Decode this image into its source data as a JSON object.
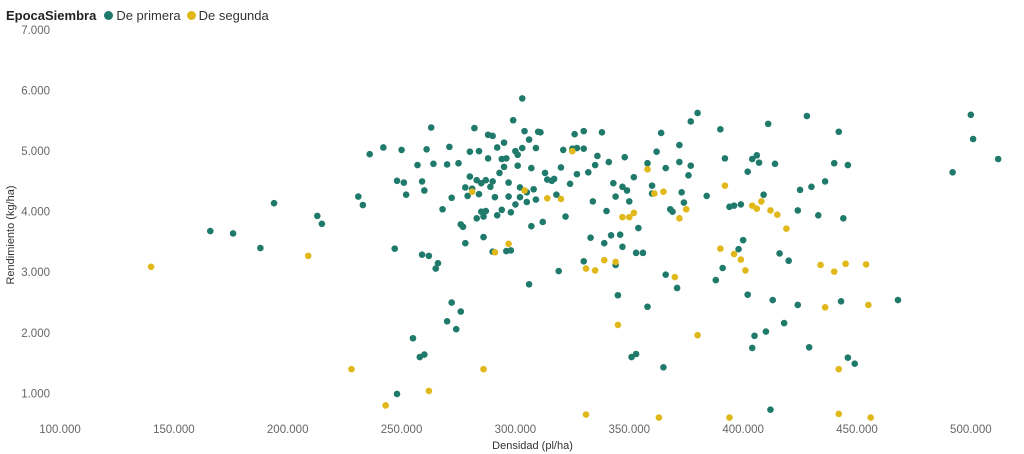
{
  "legend": {
    "title": "EpocaSiembra",
    "series_labels": [
      "De primera",
      "De segunda"
    ]
  },
  "colors": {
    "primera": "#1f7a6b",
    "segunda": "#e0b81a"
  },
  "chart_data": {
    "type": "scatter",
    "xlabel": "Densidad (pl/ha)",
    "ylabel": "Rendimiento (kg/ha)",
    "xlim": [
      100000,
      515000
    ],
    "ylim": [
      560,
      7000
    ],
    "x_ticks": [
      100000,
      150000,
      200000,
      250000,
      300000,
      350000,
      400000,
      450000,
      500000
    ],
    "x_tick_labels": [
      "100.000",
      "150.000",
      "200.000",
      "250.000",
      "300.000",
      "350.000",
      "400.000",
      "450.000",
      "500.000"
    ],
    "y_ticks": [
      1000,
      2000,
      3000,
      4000,
      5000,
      6000,
      7000
    ],
    "y_tick_labels": [
      "1.000",
      "2.000",
      "3.000",
      "4.000",
      "5.000",
      "6.000",
      "7.000"
    ],
    "grid": false,
    "legend_position": "top-left",
    "series": [
      {
        "name": "De primera",
        "color": "#1f7a6b",
        "points": [
          [
            166000,
            3680
          ],
          [
            176000,
            3640
          ],
          [
            188000,
            3400
          ],
          [
            194000,
            4140
          ],
          [
            213000,
            3930
          ],
          [
            215000,
            3800
          ],
          [
            231000,
            4250
          ],
          [
            233000,
            4110
          ],
          [
            236000,
            4950
          ],
          [
            242000,
            5060
          ],
          [
            247000,
            3390
          ],
          [
            250000,
            5020
          ],
          [
            248000,
            4510
          ],
          [
            251000,
            4480
          ],
          [
            252000,
            4280
          ],
          [
            257000,
            4770
          ],
          [
            259000,
            4500
          ],
          [
            261000,
            5030
          ],
          [
            263000,
            5390
          ],
          [
            260000,
            4350
          ],
          [
            264000,
            4790
          ],
          [
            268000,
            4040
          ],
          [
            270000,
            4780
          ],
          [
            271000,
            5070
          ],
          [
            272000,
            4230
          ],
          [
            275000,
            4800
          ],
          [
            276000,
            3790
          ],
          [
            277000,
            3750
          ],
          [
            278000,
            4400
          ],
          [
            280000,
            4580
          ],
          [
            282000,
            5380
          ],
          [
            283000,
            4520
          ],
          [
            284000,
            4290
          ],
          [
            285000,
            4000
          ],
          [
            286000,
            3920
          ],
          [
            287000,
            4520
          ],
          [
            288000,
            4880
          ],
          [
            289000,
            4410
          ],
          [
            290000,
            5250
          ],
          [
            291000,
            4240
          ],
          [
            292000,
            3940
          ],
          [
            293000,
            4640
          ],
          [
            294000,
            4870
          ],
          [
            295000,
            5140
          ],
          [
            296000,
            4880
          ],
          [
            297000,
            4250
          ],
          [
            298000,
            3990
          ],
          [
            299000,
            5510
          ],
          [
            300000,
            5000
          ],
          [
            301000,
            4760
          ],
          [
            302000,
            4400
          ],
          [
            303000,
            5050
          ],
          [
            304000,
            5330
          ],
          [
            305000,
            4160
          ],
          [
            306000,
            5190
          ],
          [
            307000,
            3760
          ],
          [
            308000,
            4370
          ],
          [
            309000,
            5050
          ],
          [
            310000,
            5320
          ],
          [
            312000,
            3830
          ],
          [
            314000,
            4530
          ],
          [
            316000,
            4510
          ],
          [
            318000,
            4280
          ],
          [
            320000,
            4730
          ],
          [
            322000,
            3920
          ],
          [
            324000,
            4460
          ],
          [
            325000,
            5040
          ],
          [
            327000,
            5050
          ],
          [
            330000,
            5330
          ],
          [
            332000,
            4650
          ],
          [
            334000,
            4170
          ],
          [
            336000,
            4920
          ],
          [
            338000,
            5310
          ],
          [
            340000,
            4010
          ],
          [
            342000,
            3610
          ],
          [
            344000,
            4250
          ],
          [
            346000,
            3620
          ],
          [
            348000,
            4900
          ],
          [
            350000,
            4170
          ],
          [
            352000,
            4570
          ],
          [
            354000,
            3730
          ],
          [
            356000,
            3320
          ],
          [
            358000,
            4800
          ],
          [
            360000,
            4300
          ],
          [
            362000,
            4990
          ],
          [
            364000,
            5300
          ],
          [
            366000,
            4720
          ],
          [
            368000,
            4040
          ],
          [
            369000,
            4000
          ],
          [
            372000,
            4820
          ],
          [
            373000,
            4320
          ],
          [
            374000,
            4150
          ],
          [
            376000,
            4600
          ],
          [
            377000,
            4760
          ],
          [
            380000,
            5630
          ],
          [
            384000,
            4260
          ],
          [
            390000,
            5360
          ],
          [
            392000,
            4880
          ],
          [
            394000,
            4080
          ],
          [
            396000,
            4100
          ],
          [
            398000,
            3380
          ],
          [
            400000,
            3530
          ],
          [
            402000,
            4660
          ],
          [
            404000,
            4870
          ],
          [
            406000,
            4930
          ],
          [
            409000,
            4280
          ],
          [
            411000,
            5450
          ],
          [
            414000,
            4790
          ],
          [
            416000,
            3310
          ],
          [
            420000,
            3190
          ],
          [
            424000,
            4020
          ],
          [
            428000,
            5580
          ],
          [
            430000,
            4410
          ],
          [
            433000,
            3940
          ],
          [
            436000,
            4500
          ],
          [
            440000,
            4800
          ],
          [
            442000,
            5320
          ],
          [
            444000,
            3890
          ],
          [
            446000,
            4770
          ],
          [
            280000,
            4990
          ],
          [
            290000,
            4500
          ],
          [
            305000,
            4320
          ],
          [
            283000,
            3890
          ],
          [
            296000,
            3350
          ],
          [
            330000,
            5040
          ],
          [
            297000,
            4480
          ],
          [
            287000,
            4010
          ],
          [
            301000,
            4940
          ],
          [
            285000,
            4470
          ],
          [
            292000,
            5060
          ],
          [
            317000,
            4540
          ],
          [
            319000,
            3020
          ],
          [
            326000,
            5280
          ],
          [
            333000,
            3570
          ],
          [
            343000,
            4470
          ],
          [
            347000,
            3420
          ],
          [
            353000,
            3320
          ],
          [
            366000,
            2960
          ],
          [
            358000,
            2430
          ],
          [
            345000,
            2620
          ],
          [
            351000,
            1600
          ],
          [
            353000,
            1650
          ],
          [
            365000,
            1430
          ],
          [
            371000,
            2740
          ],
          [
            388000,
            2870
          ],
          [
            391000,
            3070
          ],
          [
            402000,
            2630
          ],
          [
            404000,
            1750
          ],
          [
            405000,
            1950
          ],
          [
            410000,
            2020
          ],
          [
            413000,
            2540
          ],
          [
            418000,
            2160
          ],
          [
            424000,
            2460
          ],
          [
            429000,
            1760
          ],
          [
            443000,
            2520
          ],
          [
            446000,
            1590
          ],
          [
            449000,
            1490
          ],
          [
            468000,
            2540
          ],
          [
            492000,
            4650
          ],
          [
            500000,
            5600
          ],
          [
            501000,
            5200
          ],
          [
            512000,
            4870
          ],
          [
            265000,
            3060
          ],
          [
            266000,
            3150
          ],
          [
            260000,
            1640
          ],
          [
            262000,
            3270
          ],
          [
            259000,
            3290
          ],
          [
            255000,
            1910
          ],
          [
            258000,
            1600
          ],
          [
            270000,
            2190
          ],
          [
            272000,
            2500
          ],
          [
            274000,
            2060
          ],
          [
            276000,
            2350
          ],
          [
            278000,
            3480
          ],
          [
            286000,
            3580
          ],
          [
            290000,
            3340
          ],
          [
            298000,
            3360
          ],
          [
            306000,
            2800
          ],
          [
            313000,
            4640
          ],
          [
            341000,
            4820
          ],
          [
            347000,
            4410
          ],
          [
            330000,
            3180
          ],
          [
            339000,
            3480
          ],
          [
            344000,
            3120
          ],
          [
            349000,
            4350
          ],
          [
            311000,
            5310
          ],
          [
            300000,
            4120
          ],
          [
            302000,
            4240
          ],
          [
            307000,
            4720
          ],
          [
            295000,
            4740
          ],
          [
            281000,
            4380
          ],
          [
            279000,
            4260
          ],
          [
            284000,
            5000
          ],
          [
            288000,
            5270
          ],
          [
            294000,
            4030
          ],
          [
            303000,
            5870
          ],
          [
            309000,
            4200
          ],
          [
            248000,
            990
          ],
          [
            412000,
            730
          ],
          [
            321000,
            5020
          ],
          [
            327000,
            4620
          ],
          [
            335000,
            4770
          ],
          [
            360000,
            4430
          ],
          [
            372000,
            5100
          ],
          [
            377000,
            5490
          ],
          [
            399000,
            4120
          ],
          [
            407000,
            4810
          ],
          [
            425000,
            4360
          ]
        ]
      },
      {
        "name": "De segunda",
        "color": "#e0b81a",
        "points": [
          [
            140000,
            3090
          ],
          [
            209000,
            3270
          ],
          [
            228000,
            1400
          ],
          [
            243000,
            800
          ],
          [
            262000,
            1040
          ],
          [
            281000,
            4330
          ],
          [
            286000,
            1400
          ],
          [
            291000,
            3330
          ],
          [
            304000,
            4350
          ],
          [
            314000,
            4220
          ],
          [
            320000,
            4210
          ],
          [
            325000,
            5000
          ],
          [
            331000,
            3060
          ],
          [
            335000,
            3030
          ],
          [
            339000,
            3200
          ],
          [
            344000,
            3170
          ],
          [
            345000,
            2130
          ],
          [
            347000,
            3910
          ],
          [
            350000,
            3910
          ],
          [
            352000,
            3980
          ],
          [
            358000,
            4700
          ],
          [
            361000,
            4300
          ],
          [
            365000,
            4330
          ],
          [
            370000,
            2920
          ],
          [
            372000,
            3890
          ],
          [
            375000,
            4040
          ],
          [
            380000,
            1960
          ],
          [
            390000,
            3390
          ],
          [
            392000,
            4430
          ],
          [
            396000,
            3300
          ],
          [
            399000,
            3210
          ],
          [
            401000,
            3030
          ],
          [
            404000,
            4100
          ],
          [
            406000,
            4050
          ],
          [
            408000,
            4170
          ],
          [
            412000,
            4020
          ],
          [
            415000,
            3950
          ],
          [
            419000,
            3720
          ],
          [
            434000,
            3120
          ],
          [
            436000,
            2420
          ],
          [
            440000,
            3010
          ],
          [
            442000,
            1400
          ],
          [
            445000,
            3140
          ],
          [
            454000,
            3130
          ],
          [
            455000,
            2460
          ],
          [
            331000,
            650
          ],
          [
            363000,
            600
          ],
          [
            394000,
            600
          ],
          [
            442000,
            660
          ],
          [
            456000,
            600
          ],
          [
            297000,
            3470
          ]
        ]
      }
    ]
  }
}
